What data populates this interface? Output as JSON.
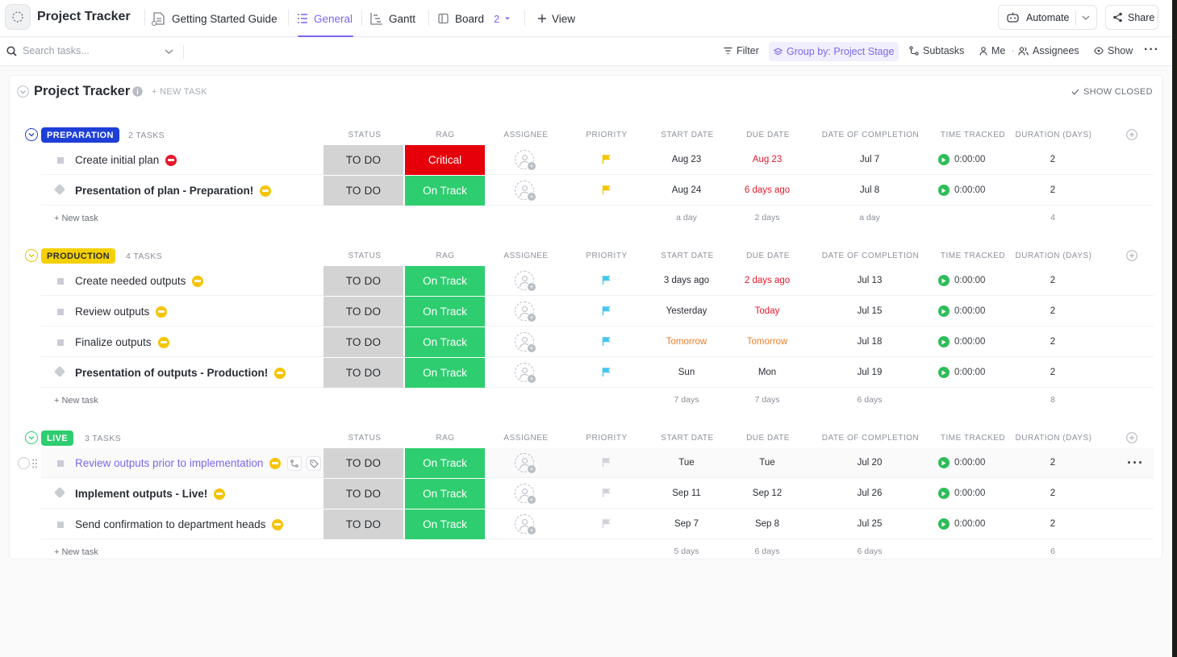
{
  "app": {
    "title": "Project Tracker",
    "tabs": [
      {
        "label": "Getting Started Guide"
      },
      {
        "label": "General"
      },
      {
        "label": "Gantt"
      },
      {
        "label": "Board",
        "count": "2"
      },
      {
        "label": "View"
      }
    ],
    "automate_label": "Automate",
    "share_label": "Share"
  },
  "toolbar": {
    "search_placeholder": "Search tasks...",
    "filter": "Filter",
    "group_by": "Group by: Project Stage",
    "subtasks": "Subtasks",
    "me": "Me",
    "assignees": "Assignees",
    "show": "Show"
  },
  "list": {
    "title": "Project Tracker",
    "new_task": "+ NEW TASK",
    "show_closed": "SHOW CLOSED"
  },
  "columns": {
    "status": "STATUS",
    "rag": "RAG",
    "assignee": "ASSIGNEE",
    "priority": "PRIORITY",
    "start_date": "START DATE",
    "due_date": "DUE DATE",
    "completion": "DATE OF COMPLETION",
    "time_tracked": "TIME TRACKED",
    "duration": "DURATION (DAYS)"
  },
  "new_task_label": "+ New task",
  "colors": {
    "accent": "#7b68ee",
    "status_todo_bg": "#d3d3d3",
    "rag_critical": "#e5000a",
    "rag_on_track": "#2ecd6f",
    "preparation": "#1d3fd8",
    "production": "#f5d000",
    "live": "#2ecd6f",
    "flag_yellow": "#f5c400",
    "flag_cyan": "#46c6f2",
    "flag_gray": "#d0d3d8"
  },
  "groups": [
    {
      "name": "PREPARATION",
      "count": "2 TASKS",
      "tasks": [
        {
          "name": "Create initial plan",
          "rag_icon": "minus-red",
          "status": "TO DO",
          "rag": "Critical",
          "priority": "yellow-flag",
          "start": "Aug 23",
          "due": "Aug 23",
          "due_color": "red",
          "start_color": "",
          "completion": "Jul 7",
          "time": "0:00:00",
          "duration": "2",
          "type": "square",
          "bold": false
        },
        {
          "name": "Presentation of plan - Preparation!",
          "rag_icon": "minus-yellow",
          "status": "TO DO",
          "rag": "On Track",
          "priority": "yellow-flag",
          "start": "Aug 24",
          "due": "6 days ago",
          "due_color": "red",
          "start_color": "",
          "completion": "Jul 8",
          "time": "0:00:00",
          "duration": "2",
          "type": "diamond",
          "bold": true
        }
      ],
      "summary": {
        "start": "a day",
        "due": "2 days",
        "completion": "a day",
        "duration": "4"
      }
    },
    {
      "name": "PRODUCTION",
      "count": "4 TASKS",
      "tasks": [
        {
          "name": "Create needed outputs",
          "rag_icon": "minus-yellow",
          "status": "TO DO",
          "rag": "On Track",
          "priority": "cyan-flag",
          "start": "3 days ago",
          "due": "2 days ago",
          "due_color": "red",
          "start_color": "",
          "completion": "Jul 13",
          "time": "0:00:00",
          "duration": "2",
          "type": "square",
          "bold": false
        },
        {
          "name": "Review outputs",
          "rag_icon": "minus-yellow",
          "status": "TO DO",
          "rag": "On Track",
          "priority": "cyan-flag",
          "start": "Yesterday",
          "due": "Today",
          "due_color": "red",
          "start_color": "",
          "completion": "Jul 15",
          "time": "0:00:00",
          "duration": "2",
          "type": "square",
          "bold": false
        },
        {
          "name": "Finalize outputs",
          "rag_icon": "minus-yellow",
          "status": "TO DO",
          "rag": "On Track",
          "priority": "cyan-flag",
          "start": "Tomorrow",
          "due": "Tomorrow",
          "due_color": "orange",
          "start_color": "orange",
          "completion": "Jul 18",
          "time": "0:00:00",
          "duration": "2",
          "type": "square",
          "bold": false
        },
        {
          "name": "Presentation of outputs - Production!",
          "rag_icon": "minus-yellow",
          "status": "TO DO",
          "rag": "On Track",
          "priority": "cyan-flag",
          "start": "Sun",
          "due": "Mon",
          "due_color": "",
          "start_color": "",
          "completion": "Jul 19",
          "time": "0:00:00",
          "duration": "2",
          "type": "diamond",
          "bold": true
        }
      ],
      "summary": {
        "start": "7 days",
        "due": "7 days",
        "completion": "6 days",
        "duration": "8"
      }
    },
    {
      "name": "LIVE",
      "count": "3 TASKS",
      "tasks": [
        {
          "name": "Review outputs prior to implementation",
          "rag_icon": "minus-yellow",
          "status": "TO DO",
          "rag": "On Track",
          "priority": "gray-flag",
          "start": "Tue",
          "due": "Tue",
          "due_color": "",
          "start_color": "",
          "completion": "Jul 20",
          "time": "0:00:00",
          "duration": "2",
          "type": "square",
          "bold": false,
          "hover": true
        },
        {
          "name": "Implement outputs - Live!",
          "rag_icon": "minus-yellow",
          "status": "TO DO",
          "rag": "On Track",
          "priority": "gray-flag",
          "start": "Sep 11",
          "due": "Sep 12",
          "due_color": "",
          "start_color": "",
          "completion": "Jul 26",
          "time": "0:00:00",
          "duration": "2",
          "type": "diamond",
          "bold": true
        },
        {
          "name": "Send confirmation to department heads",
          "rag_icon": "minus-yellow",
          "status": "TO DO",
          "rag": "On Track",
          "priority": "gray-flag",
          "start": "Sep 7",
          "due": "Sep 8",
          "due_color": "",
          "start_color": "",
          "completion": "Jul 25",
          "time": "0:00:00",
          "duration": "2",
          "type": "square",
          "bold": false
        }
      ],
      "summary": {
        "start": "5 days",
        "due": "6 days",
        "completion": "6 days",
        "duration": "6"
      }
    }
  ]
}
